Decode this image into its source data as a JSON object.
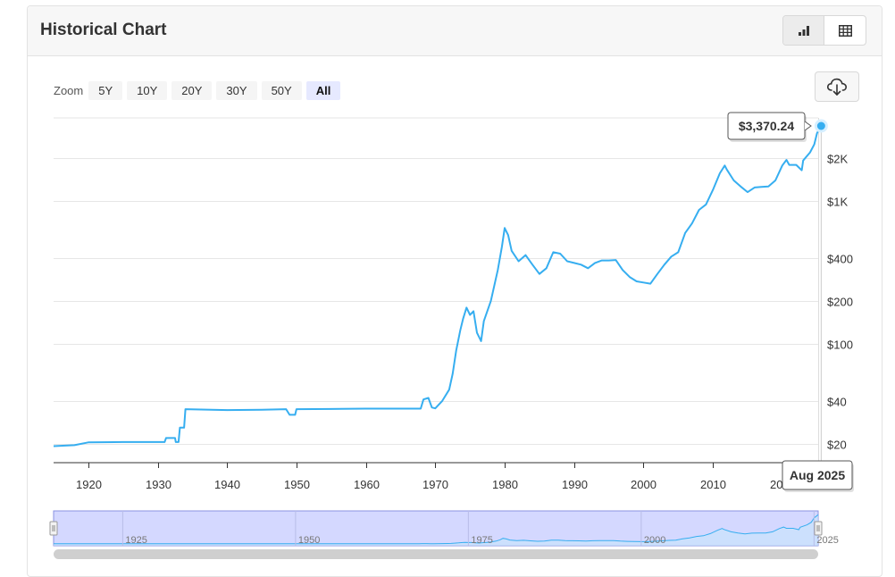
{
  "panel": {
    "title": "Historical Chart"
  },
  "view_toggle": {
    "chart_icon": "bar-chart-icon",
    "table_icon": "table-icon"
  },
  "zoom": {
    "label": "Zoom",
    "buttons": [
      "5Y",
      "10Y",
      "20Y",
      "30Y",
      "50Y",
      "All"
    ],
    "active": "All"
  },
  "download": {
    "icon": "cloud-download-icon"
  },
  "tooltip": {
    "value_label": "$3,370.24",
    "date_label": "Aug 2025"
  },
  "colors": {
    "line": "#36aef0",
    "navigator_fill": "#d4d8ff",
    "navigator_border": "#8a92e0"
  },
  "chart_data": {
    "type": "line",
    "title": "",
    "xlabel": "",
    "ylabel": "",
    "y_scale": "log",
    "y_ticks": [
      {
        "value": 20,
        "label": "$20"
      },
      {
        "value": 40,
        "label": "$40"
      },
      {
        "value": 100,
        "label": "$100"
      },
      {
        "value": 200,
        "label": "$200"
      },
      {
        "value": 400,
        "label": "$400"
      },
      {
        "value": 1000,
        "label": "$1K"
      },
      {
        "value": 2000,
        "label": "$2K"
      }
    ],
    "x_ticks": [
      1920,
      1930,
      1940,
      1950,
      1960,
      1970,
      1980,
      1990,
      2000,
      2010,
      2020
    ],
    "xlim": [
      1915,
      2025.6
    ],
    "ylim": [
      15,
      4000
    ],
    "grid": true,
    "legend": "none",
    "series": [
      {
        "points": [
          [
            1915,
            19.3
          ],
          [
            1918,
            19.6
          ],
          [
            1920,
            20.5
          ],
          [
            1925,
            20.6
          ],
          [
            1931,
            20.6
          ],
          [
            1931.2,
            22.0
          ],
          [
            1932.5,
            22.0
          ],
          [
            1932.6,
            20.6
          ],
          [
            1933,
            20.6
          ],
          [
            1933.2,
            26.0
          ],
          [
            1933.8,
            26.0
          ],
          [
            1934,
            35.0
          ],
          [
            1940,
            34.5
          ],
          [
            1945,
            34.7
          ],
          [
            1948.5,
            35.0
          ],
          [
            1949,
            32.0
          ],
          [
            1949.8,
            32.0
          ],
          [
            1950,
            35.0
          ],
          [
            1955,
            35.1
          ],
          [
            1960,
            35.3
          ],
          [
            1967.9,
            35.3
          ],
          [
            1968.3,
            41.0
          ],
          [
            1969,
            42.0
          ],
          [
            1969.5,
            36.0
          ],
          [
            1970,
            35.5
          ],
          [
            1971,
            40.0
          ],
          [
            1972,
            48.0
          ],
          [
            1972.5,
            62.0
          ],
          [
            1973,
            90.0
          ],
          [
            1973.6,
            125.0
          ],
          [
            1974,
            150.0
          ],
          [
            1974.5,
            180.0
          ],
          [
            1975,
            160.0
          ],
          [
            1975.5,
            170.0
          ],
          [
            1976,
            120.0
          ],
          [
            1976.6,
            105.0
          ],
          [
            1977,
            145.0
          ],
          [
            1978,
            200.0
          ],
          [
            1979,
            330.0
          ],
          [
            1979.6,
            480.0
          ],
          [
            1980,
            650.0
          ],
          [
            1980.5,
            580.0
          ],
          [
            1981,
            450.0
          ],
          [
            1982,
            380.0
          ],
          [
            1983,
            420.0
          ],
          [
            1984,
            360.0
          ],
          [
            1985,
            310.0
          ],
          [
            1986,
            340.0
          ],
          [
            1987,
            440.0
          ],
          [
            1988,
            430.0
          ],
          [
            1989,
            380.0
          ],
          [
            1990,
            370.0
          ],
          [
            1991,
            360.0
          ],
          [
            1992,
            340.0
          ],
          [
            1993,
            370.0
          ],
          [
            1994,
            385.0
          ],
          [
            1995,
            385.0
          ],
          [
            1996,
            388.0
          ],
          [
            1997,
            330.0
          ],
          [
            1998,
            295.0
          ],
          [
            1999,
            275.0
          ],
          [
            2000,
            270.0
          ],
          [
            2001,
            265.0
          ],
          [
            2002,
            310.0
          ],
          [
            2003,
            360.0
          ],
          [
            2004,
            410.0
          ],
          [
            2005,
            440.0
          ],
          [
            2006,
            600.0
          ],
          [
            2007,
            700.0
          ],
          [
            2008,
            870.0
          ],
          [
            2009,
            950.0
          ],
          [
            2010,
            1200.0
          ],
          [
            2011,
            1570.0
          ],
          [
            2011.7,
            1780.0
          ],
          [
            2012,
            1670.0
          ],
          [
            2013,
            1400.0
          ],
          [
            2014,
            1270.0
          ],
          [
            2015,
            1160.0
          ],
          [
            2016,
            1250.0
          ],
          [
            2017,
            1260.0
          ],
          [
            2018,
            1270.0
          ],
          [
            2019,
            1400.0
          ],
          [
            2020,
            1780.0
          ],
          [
            2020.6,
            1950.0
          ],
          [
            2021,
            1800.0
          ],
          [
            2022,
            1800.0
          ],
          [
            2022.8,
            1650.0
          ],
          [
            2023,
            1930.0
          ],
          [
            2024,
            2200.0
          ],
          [
            2024.6,
            2500.0
          ],
          [
            2025,
            3000.0
          ],
          [
            2025.6,
            3370.24
          ]
        ]
      }
    ]
  },
  "navigator": {
    "labels": [
      "1925",
      "1950",
      "1975",
      "2000",
      "2025"
    ]
  }
}
